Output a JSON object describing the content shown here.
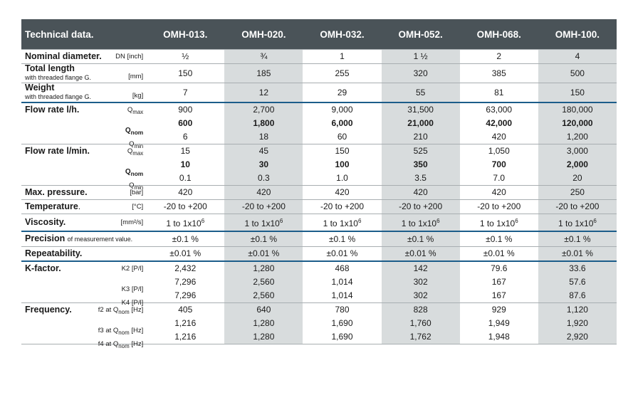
{
  "header": {
    "title": "Technical data.",
    "models": [
      "OMH-013.",
      "OMH-020.",
      "OMH-032.",
      "OMH-052.",
      "OMH-068.",
      "OMH-100."
    ]
  },
  "nominal": {
    "label": "Nominal diameter.",
    "unit": "DN [inch]",
    "values": [
      "½",
      "¾",
      "1",
      "1 ½",
      "2",
      "4"
    ]
  },
  "length": {
    "label": "Total length",
    "sub": "with threaded flange G.",
    "unit": "[mm]",
    "values": [
      "150",
      "185",
      "255",
      "320",
      "385",
      "500"
    ]
  },
  "weight": {
    "label": "Weight",
    "sub": "with threaded flange G.",
    "unit": "[kg]",
    "values": [
      "7",
      "12",
      "29",
      "55",
      "81",
      "150"
    ]
  },
  "flow_h": {
    "label": "Flow rate l/h.",
    "rows": [
      {
        "q": "Q",
        "qs": "max",
        "values": [
          "900",
          "2,700",
          "9,000",
          "31,500",
          "63,000",
          "180,000"
        ]
      },
      {
        "q": "Q",
        "qs": "nom",
        "values": [
          "600",
          "1,800",
          "6,000",
          "21,000",
          "42,000",
          "120,000"
        ]
      },
      {
        "q": "Q",
        "qs": "min",
        "values": [
          "6",
          "18",
          "60",
          "210",
          "420",
          "1,200"
        ]
      }
    ]
  },
  "flow_min": {
    "label": "Flow rate l/min.",
    "rows": [
      {
        "q": "Q",
        "qs": "max",
        "values": [
          "15",
          "45",
          "150",
          "525",
          "1,050",
          "3,000"
        ]
      },
      {
        "q": "Q",
        "qs": "nom",
        "values": [
          "10",
          "30",
          "100",
          "350",
          "700",
          "2,000"
        ]
      },
      {
        "q": "Q",
        "qs": "min",
        "values": [
          "0.1",
          "0.3",
          "1.0",
          "3.5",
          "7.0",
          "20"
        ]
      }
    ]
  },
  "pressure": {
    "label": "Max. pressure.",
    "unit": "[bar]",
    "values": [
      "420",
      "420",
      "420",
      "420",
      "420",
      "250"
    ]
  },
  "temperature": {
    "label": "Temperature",
    "dot": ".",
    "unit": "[°C]",
    "values": [
      "-20 to +200",
      "-20 to +200",
      "-20 to +200",
      "-20 to +200",
      "-20 to +200",
      "-20 to +200"
    ]
  },
  "viscosity": {
    "label": "Viscosity.",
    "unit": "[mm²/s]",
    "value_base": "1 to 1x10",
    "value_exp": "6"
  },
  "precision": {
    "label": "Precision",
    "sub": "of measurement value.",
    "values": [
      "±0.1 %",
      "±0.1 %",
      "±0.1 %",
      "±0.1 %",
      "±0.1 %",
      "±0.1 %"
    ]
  },
  "repeatability": {
    "label": "Repeatability.",
    "values": [
      "±0.01 %",
      "±0.01 %",
      "±0.01 %",
      "±0.01 %",
      "±0.01 %",
      "±0.01 %"
    ]
  },
  "kfactor": {
    "label": "K-factor.",
    "rows": [
      {
        "unit": "K2 [P/l]",
        "values": [
          "2,432",
          "1,280",
          "468",
          "142",
          "79.6",
          "33.6"
        ]
      },
      {
        "unit": "K3 [P/l]",
        "values": [
          "7,296",
          "2,560",
          "1,014",
          "302",
          "167",
          "57.6"
        ]
      },
      {
        "unit": "K4 [P/l]",
        "values": [
          "7,296",
          "2,560",
          "1,014",
          "302",
          "167",
          "87.6"
        ]
      }
    ]
  },
  "frequency": {
    "label": "Frequency.",
    "rows": [
      {
        "pre": "f2 at Q",
        "qs": "nom",
        "unit": "[Hz]",
        "values": [
          "405",
          "640",
          "780",
          "828",
          "929",
          "1,120"
        ]
      },
      {
        "pre": "f3 at Q",
        "qs": "nom",
        "unit": "[Hz]",
        "values": [
          "1,216",
          "1,280",
          "1,690",
          "1,760",
          "1,949",
          "1,920"
        ]
      },
      {
        "pre": "f4 at Q",
        "qs": "nom",
        "unit": "[Hz]",
        "values": [
          "1,216",
          "1,280",
          "1,690",
          "1,762",
          "1,948",
          "2,920"
        ]
      }
    ]
  },
  "colors": {
    "header_bg": "#4a5358",
    "shade": "#d8dcdd",
    "blue_rule": "#1c5d8a"
  }
}
